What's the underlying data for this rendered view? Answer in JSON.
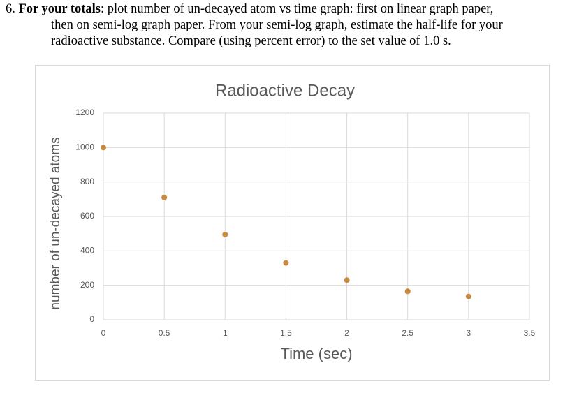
{
  "question": {
    "number": "6.",
    "bold_lead": "For your totals",
    "lines": [
      ": plot number of un-decayed atom vs time graph: first on linear graph paper,",
      "then on semi-log graph paper. From your semi-log graph, estimate the half-life for your",
      "radioactive substance. Compare (using percent error) to the set value of 1.0 s."
    ]
  },
  "chart_data": {
    "type": "scatter",
    "title": "Radioactive Decay",
    "x_label": "Time (sec)",
    "y_label": "number of un-decayed atoms",
    "x": [
      0,
      0.5,
      1,
      1.5,
      2,
      2.5,
      3
    ],
    "values": [
      1000,
      710,
      495,
      330,
      230,
      165,
      135
    ],
    "color": "#c78a41",
    "xlim": [
      0,
      3.5
    ],
    "xticks": [
      0,
      0.5,
      1,
      1.5,
      2,
      2.5,
      3,
      3.5
    ],
    "ylim": [
      0,
      1200
    ],
    "yticks": [
      0,
      200,
      400,
      600,
      800,
      1000,
      1200
    ],
    "grid": true
  }
}
